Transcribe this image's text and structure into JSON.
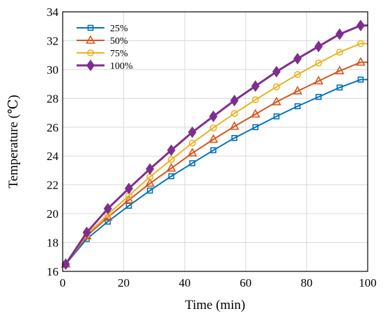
{
  "chart_data": {
    "type": "line",
    "title": "",
    "xlabel": "Time (min)",
    "ylabel": "Temperature (℃)",
    "xlim": [
      0,
      100
    ],
    "ylim": [
      16,
      34
    ],
    "xticks": [
      0,
      20,
      40,
      60,
      80,
      100
    ],
    "yticks": [
      16,
      18,
      20,
      22,
      24,
      26,
      28,
      30,
      32,
      34
    ],
    "grid": true,
    "legend_position": "top-left",
    "x": [
      1,
      7.9,
      14.8,
      21.7,
      28.6,
      35.6,
      42.5,
      49.4,
      56.3,
      63.2,
      70.1,
      77.0,
      83.9,
      90.8,
      97.7,
      100
    ],
    "series": [
      {
        "name": "25%",
        "color": "#0072BD",
        "marker": "square",
        "values": [
          16.5,
          18.25,
          19.45,
          20.55,
          21.6,
          22.6,
          23.5,
          24.4,
          25.25,
          26.0,
          26.75,
          27.45,
          28.1,
          28.75,
          29.3,
          29.3
        ]
      },
      {
        "name": "50%",
        "color": "#D95319",
        "marker": "triangle",
        "values": [
          16.5,
          18.45,
          19.75,
          20.95,
          22.1,
          23.15,
          24.2,
          25.15,
          26.05,
          26.9,
          27.75,
          28.5,
          29.2,
          29.9,
          30.5,
          30.5
        ]
      },
      {
        "name": "75%",
        "color": "#EDB120",
        "marker": "circle",
        "values": [
          16.5,
          18.55,
          19.95,
          21.25,
          22.55,
          23.75,
          24.9,
          25.95,
          26.95,
          27.9,
          28.8,
          29.65,
          30.45,
          31.2,
          31.8,
          31.8
        ]
      },
      {
        "name": "100%",
        "color": "#7E2F8E",
        "marker": "diamond",
        "values": [
          16.5,
          18.7,
          20.35,
          21.75,
          23.1,
          24.4,
          25.65,
          26.75,
          27.85,
          28.85,
          29.85,
          30.75,
          31.6,
          32.45,
          33.05,
          33.05
        ]
      }
    ]
  }
}
